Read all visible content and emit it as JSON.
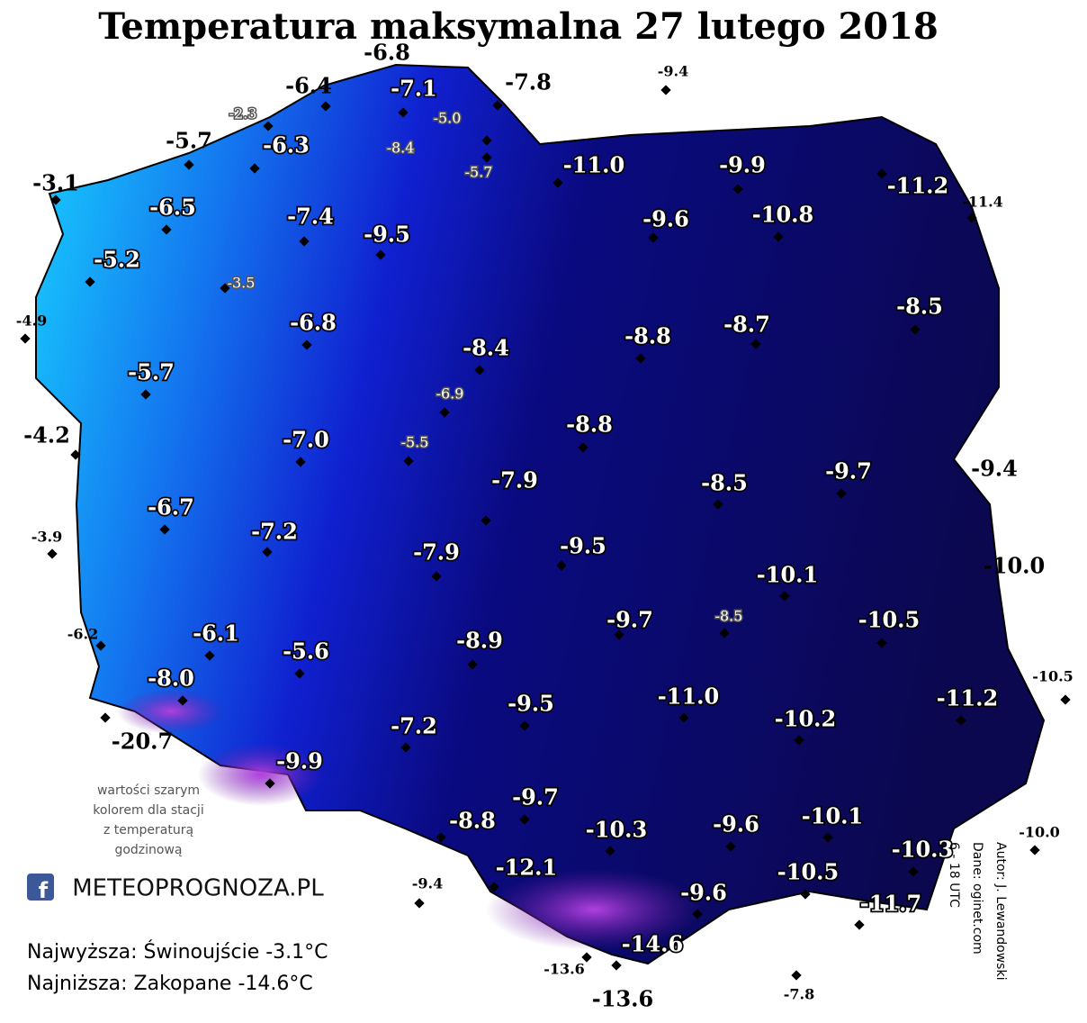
{
  "title": "Temperatura maksymalna 27 lutego 2018",
  "stations": [
    "-6.8",
    "-6.4",
    "-7.1",
    "-7.8",
    "-9.4",
    "-2.3",
    "-5.0",
    "-5.7",
    "-6.3",
    "-8.4",
    "-5.7",
    "-11.0",
    "-9.9",
    "-11.2",
    "-11.4",
    "-3.1",
    "-6.5",
    "-7.4",
    "-9.5",
    "-9.6",
    "-10.8",
    "-5.2",
    "-3.5",
    "-4.9",
    "-6.8",
    "-8.5",
    "-8.8",
    "-8.7",
    "-8.4",
    "-5.7",
    "-6.9",
    "-4.2",
    "-7.0",
    "-5.5",
    "-8.8",
    "-9.4",
    "-9.7",
    "-8.5",
    "-7.9",
    "-6.7",
    "-3.9",
    "-7.2",
    "-9.5",
    "-7.9",
    "-10.0",
    "-10.1",
    "-10.5",
    "-9.7",
    "-8.5",
    "-6.2",
    "-6.1",
    "-5.6",
    "-8.9",
    "-8.0",
    "-10.5",
    "-11.0",
    "-9.5",
    "-11.2",
    "-10.2",
    "-20.7",
    "-7.2",
    "-9.9",
    "-9.7",
    "-10.1",
    "-8.8",
    "-10.3",
    "-9.6",
    "-10.0",
    "-10.3",
    "-12.1",
    "-10.5",
    "-9.4",
    "-9.6",
    "-11.7",
    "-14.6",
    "-13.6",
    "-13.6",
    "-7.8"
  ],
  "note": [
    "wartości szarym",
    "kolorem dla stacji",
    "z temperaturą",
    "godzinową"
  ],
  "logo": "METEOPROGNOZA.PL",
  "summary": [
    "Najwyższa: Świnoujście -3.1°C",
    "Najniższa: Zakopane -14.6°C"
  ],
  "credits": [
    "Autor: J. Lewandowski",
    "Dane: oginet.com",
    "6 - 18 UTC"
  ]
}
